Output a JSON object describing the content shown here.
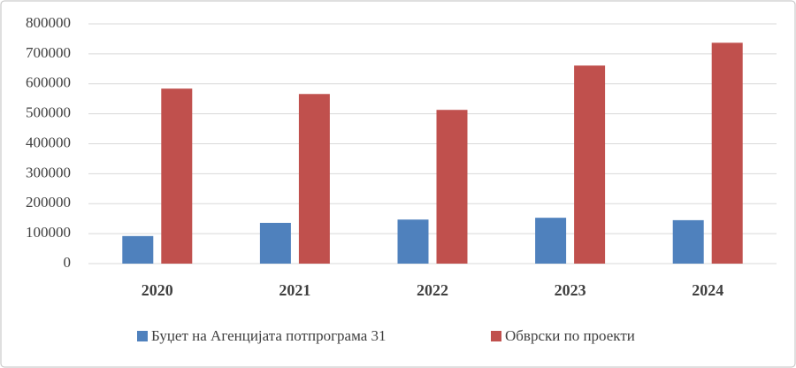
{
  "chart_data": {
    "type": "bar",
    "categories": [
      "2020",
      "2021",
      "2022",
      "2023",
      "2024"
    ],
    "series": [
      {
        "name": "Буџет на Агенцијата потпрограма 31",
        "color": "#4f81bd",
        "values": [
          92000,
          136000,
          147000,
          153000,
          145000
        ]
      },
      {
        "name": "Обврски по проекти",
        "color": "#c0504d",
        "values": [
          584000,
          566000,
          513000,
          661000,
          737000
        ]
      }
    ],
    "ylim": [
      0,
      800000
    ],
    "yticks": [
      0,
      100000,
      200000,
      300000,
      400000,
      500000,
      600000,
      700000,
      800000
    ],
    "grid": true,
    "legend": "bottom"
  }
}
